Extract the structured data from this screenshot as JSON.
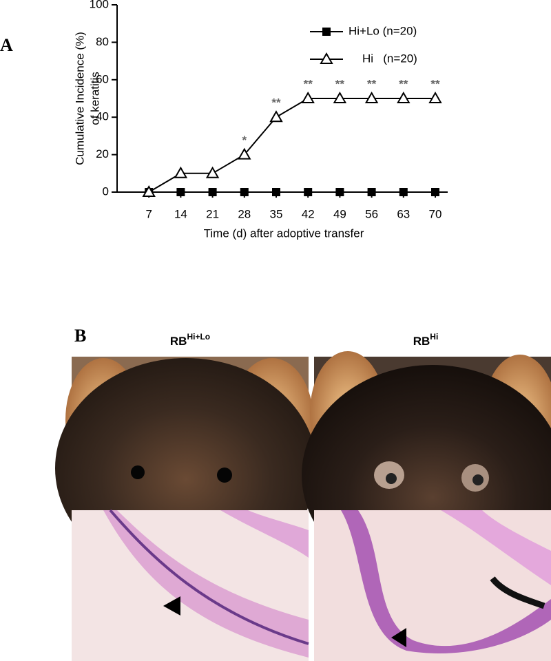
{
  "panels": {
    "a": "A",
    "b": "B"
  },
  "chart_data": {
    "type": "line",
    "ylabel": [
      "Cumulative Incidence (%)",
      "of keratitis"
    ],
    "xlabel": "Time (d) after adoptive transfer",
    "x": [
      7,
      14,
      21,
      28,
      35,
      42,
      49,
      56,
      63,
      70
    ],
    "xlim": [
      0,
      70
    ],
    "xticks": [
      7,
      14,
      21,
      28,
      35,
      42,
      49,
      56,
      63,
      70
    ],
    "ylim": [
      0,
      100
    ],
    "yticks": [
      0,
      20,
      40,
      60,
      80,
      100
    ],
    "legend": "upper right",
    "series": [
      {
        "name": "Hi+Lo (n=20)",
        "color": "#000000",
        "marker": "square",
        "values": [
          0,
          0,
          0,
          0,
          0,
          0,
          0,
          0,
          0,
          0
        ]
      },
      {
        "name": "Hi   (n=20)",
        "color": "#000000",
        "marker": "open-triangle",
        "values": [
          0,
          10,
          10,
          20,
          40,
          50,
          50,
          50,
          50,
          50
        ]
      }
    ],
    "annotations": [
      {
        "x": 28,
        "text": "*"
      },
      {
        "x": 35,
        "text": "**"
      },
      {
        "x": 42,
        "text": "**"
      },
      {
        "x": 49,
        "text": "**"
      },
      {
        "x": 56,
        "text": "**"
      },
      {
        "x": 63,
        "text": "**"
      },
      {
        "x": 70,
        "text": "**"
      }
    ]
  },
  "images": [
    {
      "label": "RB",
      "superscript": "Hi+Lo"
    },
    {
      "label": "RB",
      "superscript": "Hi"
    }
  ]
}
